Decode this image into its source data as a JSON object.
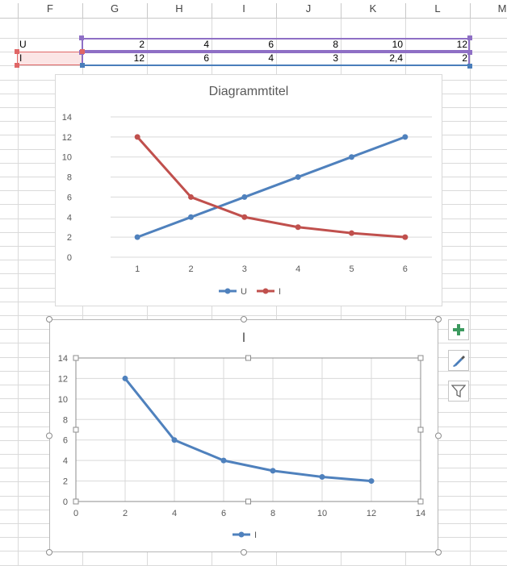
{
  "spreadsheet": {
    "column_headers": [
      "F",
      "G",
      "H",
      "I",
      "J",
      "K",
      "L",
      "M"
    ],
    "rows": [
      {
        "label": "U",
        "values": [
          "2",
          "4",
          "6",
          "8",
          "10",
          "12"
        ]
      },
      {
        "label": "I",
        "values": [
          "12",
          "6",
          "4",
          "3",
          "2,4",
          "2"
        ]
      }
    ]
  },
  "chart1": {
    "title": "Diagrammtitel",
    "legend": [
      {
        "name": "U",
        "color": "#4F81BD"
      },
      {
        "name": "I",
        "color": "#C0504D"
      }
    ]
  },
  "chart2": {
    "title": "I",
    "legend": [
      {
        "name": "I",
        "color": "#4F81BD"
      }
    ]
  },
  "tools": {
    "add_icon": "plus-icon",
    "style_icon": "brush-icon",
    "filter_icon": "funnel-icon"
  },
  "chart_data": [
    {
      "type": "line",
      "title": "Diagrammtitel",
      "categories": [
        "1",
        "2",
        "3",
        "4",
        "5",
        "6"
      ],
      "series": [
        {
          "name": "U",
          "values": [
            2,
            4,
            6,
            8,
            10,
            12
          ],
          "color": "#4F81BD"
        },
        {
          "name": "I",
          "values": [
            12,
            6,
            4,
            3,
            2.4,
            2
          ],
          "color": "#C0504D"
        }
      ],
      "ylim": [
        0,
        14
      ],
      "yticks": [
        0,
        2,
        4,
        6,
        8,
        10,
        12,
        14
      ],
      "grid": true,
      "legend": "bottom"
    },
    {
      "type": "scatter",
      "title": "I",
      "series": [
        {
          "name": "I",
          "x": [
            2,
            4,
            6,
            8,
            10,
            12
          ],
          "y": [
            12,
            6,
            4,
            3,
            2.4,
            2
          ],
          "color": "#4F81BD",
          "lines": true
        }
      ],
      "xlim": [
        0,
        14
      ],
      "ylim": [
        0,
        14
      ],
      "xticks": [
        0,
        2,
        4,
        6,
        8,
        10,
        12,
        14
      ],
      "yticks": [
        0,
        2,
        4,
        6,
        8,
        10,
        12,
        14
      ],
      "grid": true,
      "legend": "bottom",
      "selected": true
    }
  ]
}
